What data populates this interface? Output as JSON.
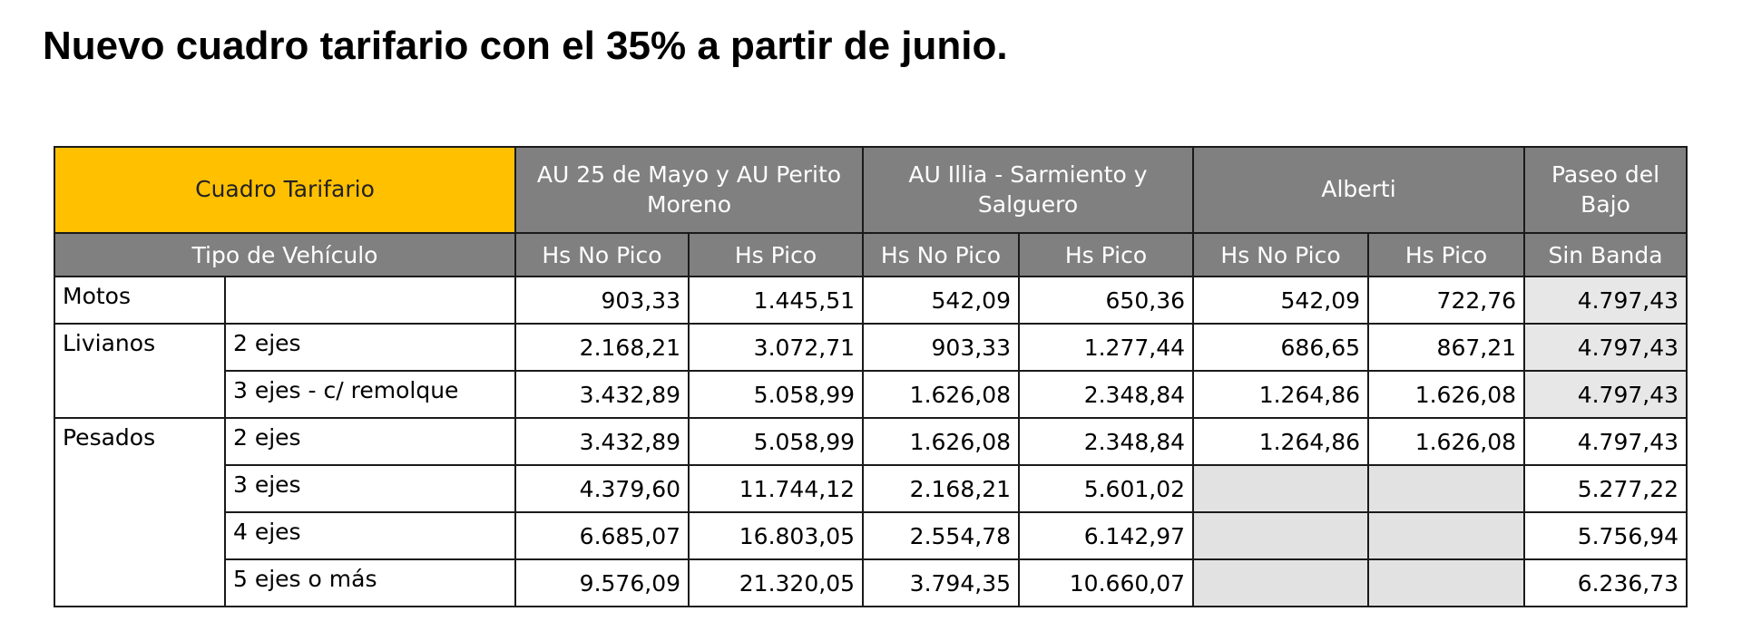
{
  "title": "Nuevo cuadro tarifario con el 35% a partir de junio.",
  "table": {
    "corner": "Cuadro Tarifario",
    "groups": [
      "AU 25 de Mayo y AU Perito Moreno",
      "AU Illia - Sarmiento y Salguero",
      "Alberti",
      "Paseo del Bajo"
    ],
    "vehicle_header": "Tipo de Vehículo",
    "subheaders": [
      "Hs No Pico",
      "Hs Pico",
      "Hs No Pico",
      "Hs Pico",
      "Hs No Pico",
      "Hs Pico",
      "Sin Banda"
    ],
    "sections": [
      {
        "label": "Motos",
        "rows": [
          {
            "cells": [
              "903,33",
              "1.445,51",
              "542,09",
              "650,36",
              "542,09",
              "722,76",
              "4.797,43"
            ]
          }
        ]
      },
      {
        "label": "Livianos",
        "rows": [
          {
            "sub": "2 ejes",
            "cells": [
              "2.168,21",
              "3.072,71",
              "903,33",
              "1.277,44",
              "686,65",
              "867,21",
              "4.797,43"
            ]
          },
          {
            "sub": "3 ejes - c/ remolque",
            "cells": [
              "3.432,89",
              "5.058,99",
              "1.626,08",
              "2.348,84",
              "1.264,86",
              "1.626,08",
              "4.797,43"
            ]
          }
        ]
      },
      {
        "label": "Pesados",
        "rows": [
          {
            "sub": "2 ejes",
            "cells": [
              "3.432,89",
              "5.058,99",
              "1.626,08",
              "2.348,84",
              "1.264,86",
              "1.626,08",
              "4.797,43"
            ]
          },
          {
            "sub": "3 ejes",
            "cells": [
              "4.379,60",
              "11.744,12",
              "2.168,21",
              "5.601,02",
              null,
              null,
              "5.277,22"
            ]
          },
          {
            "sub": "4 ejes",
            "cells": [
              "6.685,07",
              "16.803,05",
              "2.554,78",
              "6.142,97",
              null,
              null,
              "5.756,94"
            ]
          },
          {
            "sub": "5 ejes o más",
            "cells": [
              "9.576,09",
              "21.320,05",
              "3.794,35",
              "10.660,07",
              null,
              null,
              "6.236,73"
            ]
          }
        ]
      }
    ]
  }
}
